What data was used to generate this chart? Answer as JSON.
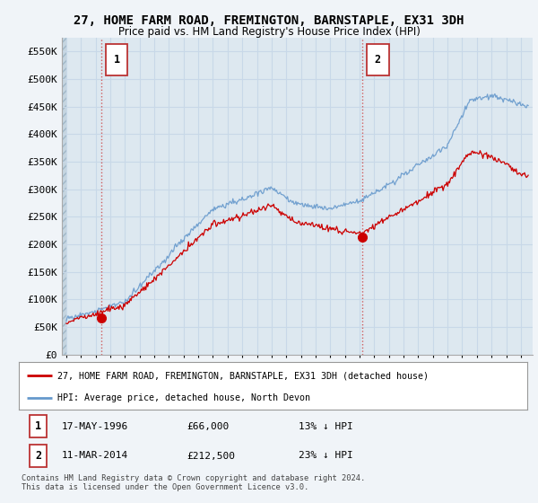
{
  "title": "27, HOME FARM ROAD, FREMINGTON, BARNSTAPLE, EX31 3DH",
  "subtitle": "Price paid vs. HM Land Registry's House Price Index (HPI)",
  "legend_line1": "27, HOME FARM ROAD, FREMINGTON, BARNSTAPLE, EX31 3DH (detached house)",
  "legend_line2": "HPI: Average price, detached house, North Devon",
  "annotation1_label": "1",
  "annotation1_date": "17-MAY-1996",
  "annotation1_price": "£66,000",
  "annotation1_hpi": "13% ↓ HPI",
  "annotation1_year": 1996.38,
  "annotation1_value": 66000,
  "annotation2_label": "2",
  "annotation2_date": "11-MAR-2014",
  "annotation2_price": "£212,500",
  "annotation2_hpi": "23% ↓ HPI",
  "annotation2_year": 2014.19,
  "annotation2_value": 212500,
  "footer": "Contains HM Land Registry data © Crown copyright and database right 2024.\nThis data is licensed under the Open Government Licence v3.0.",
  "ylim": [
    0,
    575000
  ],
  "yticks": [
    0,
    50000,
    100000,
    150000,
    200000,
    250000,
    300000,
    350000,
    400000,
    450000,
    500000,
    550000
  ],
  "hpi_color": "#6699cc",
  "price_color": "#cc0000",
  "dashed_line_color": "#cc4444",
  "background_color": "#f0f4f8",
  "plot_bg_color": "#dde8f0",
  "hatch_color": "#c5d5e0",
  "grid_color": "#c8d8e8",
  "title_color": "#000000",
  "xlim_left": 1993.7,
  "xlim_right": 2025.8,
  "xticks": [
    1994,
    1995,
    1996,
    1997,
    1998,
    1999,
    2000,
    2001,
    2002,
    2003,
    2004,
    2005,
    2006,
    2007,
    2008,
    2009,
    2010,
    2011,
    2012,
    2013,
    2014,
    2015,
    2016,
    2017,
    2018,
    2019,
    2020,
    2021,
    2022,
    2023,
    2024,
    2025
  ]
}
